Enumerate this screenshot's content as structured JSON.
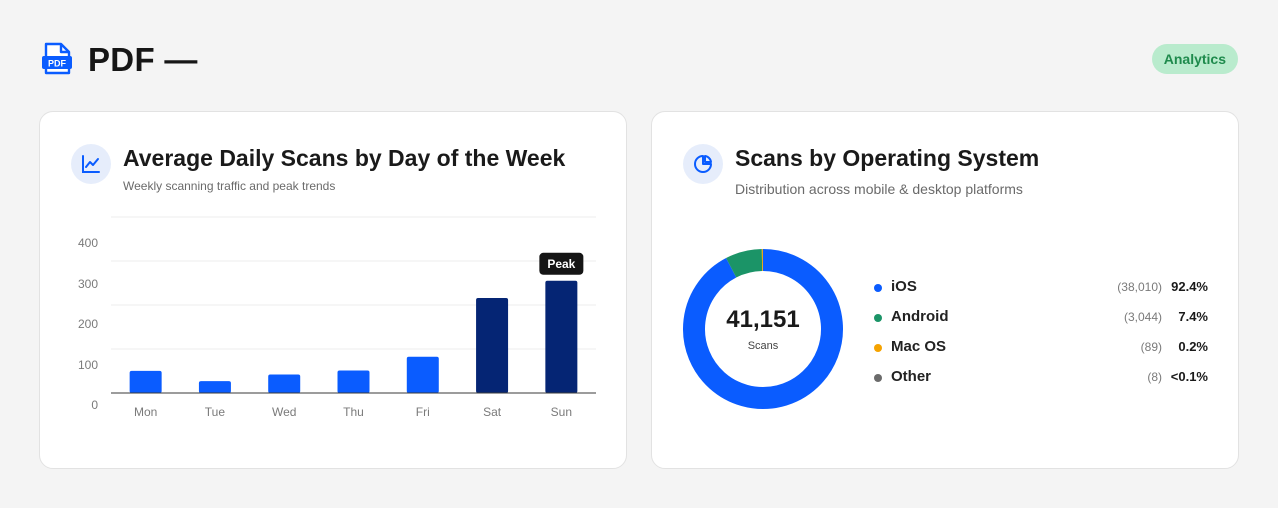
{
  "header": {
    "title": "PDF —",
    "badge": "Analytics",
    "icon_label": "PDF"
  },
  "colors": {
    "accent": "#0a5cff",
    "navy": "#052574",
    "green_badge_bg": "#b9ebcd",
    "green_badge_text": "#1e8a4c"
  },
  "daily_card": {
    "title": "Average Daily Scans by Day of the Week",
    "subtitle": "Weekly scanning traffic and peak trends",
    "icon": "line-chart-icon",
    "peak_label": "Peak"
  },
  "os_card": {
    "title": "Scans by Operating System",
    "subtitle": "Distribution across mobile & desktop platforms",
    "icon": "pie-chart-icon",
    "total": "41,151",
    "total_label": "Scans",
    "legend": [
      {
        "name": "iOS",
        "count": "(38,010)",
        "pct": "92.4%",
        "color": "#0a5cff"
      },
      {
        "name": "Android",
        "count": "(3,044)",
        "pct": "7.4%",
        "color": "#1b9467"
      },
      {
        "name": "Mac OS",
        "count": "(89)",
        "pct": "0.2%",
        "color": "#f5a300"
      },
      {
        "name": "Other",
        "count": "(8)",
        "pct": "<0.1%",
        "color": "#6b6b6b"
      }
    ]
  },
  "chart_data": [
    {
      "type": "bar",
      "title": "Average Daily Scans by Day of the Week",
      "categories": [
        "Mon",
        "Tue",
        "Wed",
        "Thu",
        "Fri",
        "Sat",
        "Sun"
      ],
      "values": [
        67,
        36,
        56,
        68,
        110,
        288,
        340
      ],
      "yticks": [
        0,
        100,
        200,
        300,
        400
      ],
      "ylim": [
        0,
        400
      ],
      "grid": true,
      "highlight_color": "#052574",
      "bar_color": "#0a5cff",
      "highlighted": [
        "Sat",
        "Sun"
      ],
      "peak": "Sun"
    },
    {
      "type": "pie",
      "title": "Scans by Operating System",
      "categories": [
        "iOS",
        "Android",
        "Mac OS",
        "Other"
      ],
      "values": [
        38010,
        3044,
        89,
        8
      ]
    }
  ]
}
